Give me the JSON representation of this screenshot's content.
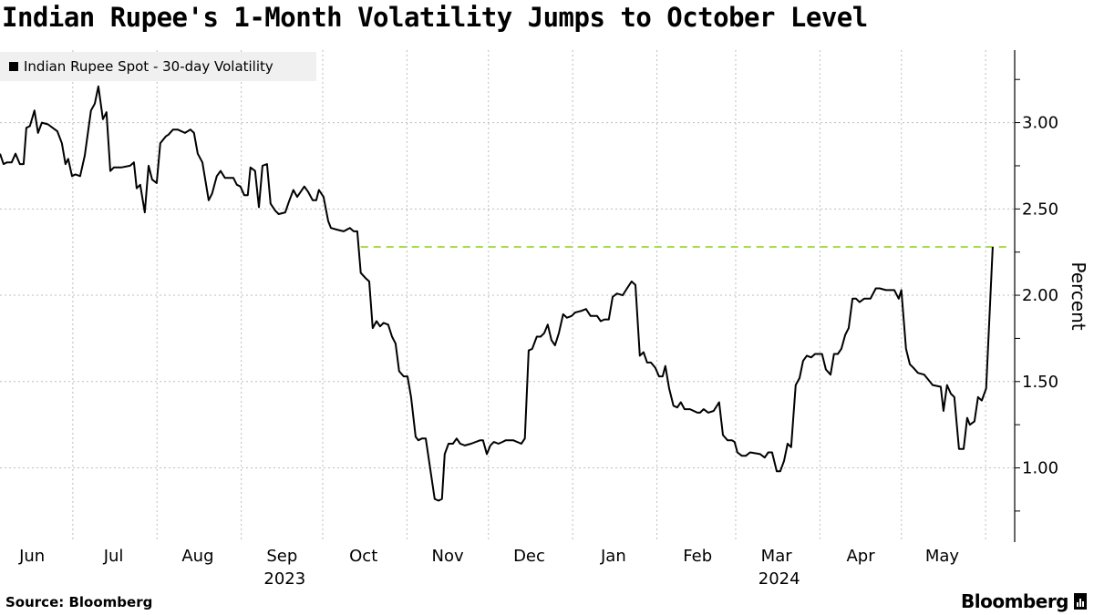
{
  "title": "Indian Rupee's 1-Month Volatility Jumps to October Level",
  "source": "Source: Bloomberg",
  "brand": "Bloomberg",
  "colors": {
    "line": "#000000",
    "reference": "#a6dd4a",
    "grid": "#bdbdbd",
    "legend_bg": "#f0f0f0"
  },
  "chart_data": {
    "type": "line",
    "title": "Indian Rupee's 1-Month Volatility Jumps to October Level",
    "x_unit": "days since 2023-06-01",
    "xlim": [
      3.2,
      376.7
    ],
    "ylim": [
      0.57,
      3.42
    ],
    "ylabel": "Percent",
    "xlabel": "",
    "grid": true,
    "legend_position": "top-left",
    "y_ticks": [
      {
        "v": 1.0,
        "label": "1.00"
      },
      {
        "v": 1.5,
        "label": "1.50"
      },
      {
        "v": 2.0,
        "label": "2.00"
      },
      {
        "v": 2.5,
        "label": "2.50"
      },
      {
        "v": 3.0,
        "label": "3.00"
      }
    ],
    "y_minor_ticks": [
      0.75,
      1.25,
      1.75,
      2.25,
      2.75,
      3.25
    ],
    "month_boundaries": [
      30,
      61,
      92,
      122,
      153,
      183,
      214,
      245,
      274,
      305,
      335,
      366
    ],
    "x_ticks": [
      {
        "day": 15,
        "label": "Jun"
      },
      {
        "day": 45,
        "label": "Jul"
      },
      {
        "day": 76,
        "label": "Aug"
      },
      {
        "day": 107,
        "label": "Sep"
      },
      {
        "day": 137,
        "label": "Oct"
      },
      {
        "day": 168,
        "label": "Nov"
      },
      {
        "day": 198,
        "label": "Dec"
      },
      {
        "day": 229,
        "label": "Jan"
      },
      {
        "day": 260,
        "label": "Feb"
      },
      {
        "day": 289,
        "label": "Mar"
      },
      {
        "day": 320,
        "label": "Apr"
      },
      {
        "day": 350,
        "label": "May"
      }
    ],
    "year_labels": [
      {
        "day": 107,
        "label": "2023"
      },
      {
        "day": 289,
        "label": "2024"
      }
    ],
    "reference_line": {
      "value": 2.28,
      "from_day": 136,
      "to_day": 375.5,
      "style": "dashed"
    },
    "series": [
      {
        "name": "Indian Rupee Spot - 30-day Volatility",
        "points": [
          [
            3.2,
            2.82
          ],
          [
            4.5,
            2.76
          ],
          [
            5.8,
            2.77
          ],
          [
            7.5,
            2.77
          ],
          [
            8.9,
            2.82
          ],
          [
            10.5,
            2.76
          ],
          [
            11.9,
            2.76
          ],
          [
            12.9,
            2.97
          ],
          [
            14.2,
            2.98
          ],
          [
            15.9,
            3.07
          ],
          [
            17.2,
            2.94
          ],
          [
            18.6,
            3.0
          ],
          [
            20.9,
            2.99
          ],
          [
            22.6,
            2.97
          ],
          [
            24.3,
            2.95
          ],
          [
            26.0,
            2.88
          ],
          [
            27.3,
            2.76
          ],
          [
            28.3,
            2.79
          ],
          [
            29.7,
            2.69
          ],
          [
            31.0,
            2.7
          ],
          [
            32.7,
            2.69
          ],
          [
            34.4,
            2.81
          ],
          [
            36.7,
            3.07
          ],
          [
            38.1,
            3.11
          ],
          [
            39.4,
            3.21
          ],
          [
            41.1,
            3.02
          ],
          [
            42.4,
            3.06
          ],
          [
            43.8,
            2.72
          ],
          [
            45.1,
            2.74
          ],
          [
            46.1,
            2.74
          ],
          [
            47.8,
            2.74
          ],
          [
            51.1,
            2.75
          ],
          [
            52.5,
            2.77
          ],
          [
            53.5,
            2.62
          ],
          [
            54.8,
            2.64
          ],
          [
            56.5,
            2.48
          ],
          [
            57.9,
            2.75
          ],
          [
            59.2,
            2.67
          ],
          [
            60.9,
            2.65
          ],
          [
            62.2,
            2.88
          ],
          [
            64.2,
            2.92
          ],
          [
            65.2,
            2.93
          ],
          [
            66.9,
            2.96
          ],
          [
            68.6,
            2.96
          ],
          [
            71.3,
            2.94
          ],
          [
            73.3,
            2.96
          ],
          [
            74.6,
            2.94
          ],
          [
            76.0,
            2.82
          ],
          [
            77.7,
            2.77
          ],
          [
            80.0,
            2.55
          ],
          [
            81.3,
            2.59
          ],
          [
            83.0,
            2.69
          ],
          [
            84.4,
            2.72
          ],
          [
            86.0,
            2.68
          ],
          [
            89.1,
            2.68
          ],
          [
            90.4,
            2.64
          ],
          [
            91.7,
            2.63
          ],
          [
            93.1,
            2.58
          ],
          [
            94.4,
            2.58
          ],
          [
            95.4,
            2.74
          ],
          [
            97.1,
            2.72
          ],
          [
            98.5,
            2.51
          ],
          [
            99.8,
            2.75
          ],
          [
            101.5,
            2.76
          ],
          [
            102.8,
            2.53
          ],
          [
            104.5,
            2.49
          ],
          [
            105.8,
            2.47
          ],
          [
            108.2,
            2.48
          ],
          [
            109.5,
            2.54
          ],
          [
            111.2,
            2.61
          ],
          [
            112.6,
            2.57
          ],
          [
            115.2,
            2.63
          ],
          [
            116.6,
            2.6
          ],
          [
            118.3,
            2.55
          ],
          [
            119.6,
            2.55
          ],
          [
            120.6,
            2.61
          ],
          [
            122.3,
            2.57
          ],
          [
            124.0,
            2.43
          ],
          [
            125.0,
            2.39
          ],
          [
            127.3,
            2.38
          ],
          [
            129.7,
            2.37
          ],
          [
            132.0,
            2.39
          ],
          [
            133.4,
            2.37
          ],
          [
            134.7,
            2.37
          ],
          [
            136.0,
            2.13
          ],
          [
            137.7,
            2.1
          ],
          [
            139.1,
            2.08
          ],
          [
            140.4,
            1.81
          ],
          [
            141.8,
            1.85
          ],
          [
            143.1,
            1.82
          ],
          [
            144.4,
            1.84
          ],
          [
            146.1,
            1.83
          ],
          [
            147.5,
            1.76
          ],
          [
            148.8,
            1.72
          ],
          [
            150.1,
            1.56
          ],
          [
            151.8,
            1.53
          ],
          [
            153.2,
            1.53
          ],
          [
            154.5,
            1.41
          ],
          [
            156.2,
            1.18
          ],
          [
            157.2,
            1.16
          ],
          [
            158.5,
            1.17
          ],
          [
            159.9,
            1.17
          ],
          [
            163.2,
            0.82
          ],
          [
            164.6,
            0.81
          ],
          [
            165.9,
            0.82
          ],
          [
            166.9,
            1.08
          ],
          [
            168.3,
            1.14
          ],
          [
            169.9,
            1.14
          ],
          [
            171.3,
            1.17
          ],
          [
            172.6,
            1.14
          ],
          [
            174.3,
            1.13
          ],
          [
            176.6,
            1.14
          ],
          [
            180.0,
            1.16
          ],
          [
            181.0,
            1.16
          ],
          [
            182.4,
            1.08
          ],
          [
            183.7,
            1.13
          ],
          [
            185.0,
            1.15
          ],
          [
            186.7,
            1.14
          ],
          [
            188.1,
            1.15
          ],
          [
            189.4,
            1.16
          ],
          [
            192.1,
            1.16
          ],
          [
            195.1,
            1.14
          ],
          [
            196.4,
            1.17
          ],
          [
            197.8,
            1.68
          ],
          [
            199.1,
            1.69
          ],
          [
            200.8,
            1.76
          ],
          [
            202.2,
            1.76
          ],
          [
            203.5,
            1.78
          ],
          [
            204.8,
            1.83
          ],
          [
            206.2,
            1.74
          ],
          [
            207.5,
            1.71
          ],
          [
            208.9,
            1.78
          ],
          [
            210.5,
            1.89
          ],
          [
            211.9,
            1.87
          ],
          [
            213.6,
            1.88
          ],
          [
            214.9,
            1.9
          ],
          [
            217.3,
            1.91
          ],
          [
            218.9,
            1.92
          ],
          [
            220.6,
            1.88
          ],
          [
            223.0,
            1.88
          ],
          [
            224.3,
            1.85
          ],
          [
            225.7,
            1.86
          ],
          [
            227.3,
            1.86
          ],
          [
            228.7,
            1.99
          ],
          [
            230.3,
            2.01
          ],
          [
            232.4,
            2.0
          ],
          [
            234.0,
            2.04
          ],
          [
            235.7,
            2.08
          ],
          [
            237.1,
            2.06
          ],
          [
            238.7,
            1.65
          ],
          [
            240.1,
            1.67
          ],
          [
            241.4,
            1.61
          ],
          [
            242.8,
            1.61
          ],
          [
            244.4,
            1.58
          ],
          [
            245.8,
            1.53
          ],
          [
            247.1,
            1.53
          ],
          [
            248.1,
            1.59
          ],
          [
            249.5,
            1.46
          ],
          [
            251.1,
            1.36
          ],
          [
            252.5,
            1.35
          ],
          [
            253.8,
            1.38
          ],
          [
            255.2,
            1.34
          ],
          [
            257.2,
            1.34
          ],
          [
            259.9,
            1.32
          ],
          [
            260.9,
            1.32
          ],
          [
            262.2,
            1.34
          ],
          [
            263.9,
            1.32
          ],
          [
            265.9,
            1.33
          ],
          [
            267.9,
            1.38
          ],
          [
            269.3,
            1.19
          ],
          [
            271.0,
            1.16
          ],
          [
            272.6,
            1.16
          ],
          [
            273.6,
            1.15
          ],
          [
            274.6,
            1.09
          ],
          [
            276.3,
            1.07
          ],
          [
            277.7,
            1.07
          ],
          [
            279.3,
            1.09
          ],
          [
            283.0,
            1.08
          ],
          [
            284.7,
            1.06
          ],
          [
            286.0,
            1.09
          ],
          [
            287.4,
            1.09
          ],
          [
            289.1,
            0.98
          ],
          [
            290.4,
            0.98
          ],
          [
            291.8,
            1.04
          ],
          [
            293.1,
            1.14
          ],
          [
            294.4,
            1.12
          ],
          [
            296.1,
            1.48
          ],
          [
            297.5,
            1.52
          ],
          [
            298.8,
            1.62
          ],
          [
            300.2,
            1.65
          ],
          [
            301.8,
            1.64
          ],
          [
            303.2,
            1.66
          ],
          [
            305.8,
            1.66
          ],
          [
            307.2,
            1.57
          ],
          [
            308.9,
            1.54
          ],
          [
            310.2,
            1.66
          ],
          [
            311.6,
            1.66
          ],
          [
            312.9,
            1.69
          ],
          [
            314.3,
            1.77
          ],
          [
            315.6,
            1.81
          ],
          [
            317.0,
            1.98
          ],
          [
            318.3,
            1.98
          ],
          [
            319.6,
            1.96
          ],
          [
            321.3,
            1.98
          ],
          [
            323.6,
            1.98
          ],
          [
            325.6,
            2.04
          ],
          [
            327.0,
            2.04
          ],
          [
            329.3,
            2.03
          ],
          [
            332.4,
            2.03
          ],
          [
            334.0,
            1.98
          ],
          [
            335.0,
            2.03
          ],
          [
            336.7,
            1.69
          ],
          [
            338.1,
            1.6
          ],
          [
            339.4,
            1.58
          ],
          [
            341.1,
            1.55
          ],
          [
            343.4,
            1.54
          ],
          [
            346.5,
            1.48
          ],
          [
            349.5,
            1.47
          ],
          [
            350.5,
            1.33
          ],
          [
            351.8,
            1.48
          ],
          [
            353.2,
            1.43
          ],
          [
            354.5,
            1.41
          ],
          [
            356.2,
            1.11
          ],
          [
            357.9,
            1.11
          ],
          [
            359.2,
            1.29
          ],
          [
            360.2,
            1.25
          ],
          [
            361.9,
            1.27
          ],
          [
            363.2,
            1.41
          ],
          [
            364.6,
            1.39
          ],
          [
            366.2,
            1.46
          ],
          [
            368.6,
            2.28
          ]
        ]
      }
    ]
  }
}
